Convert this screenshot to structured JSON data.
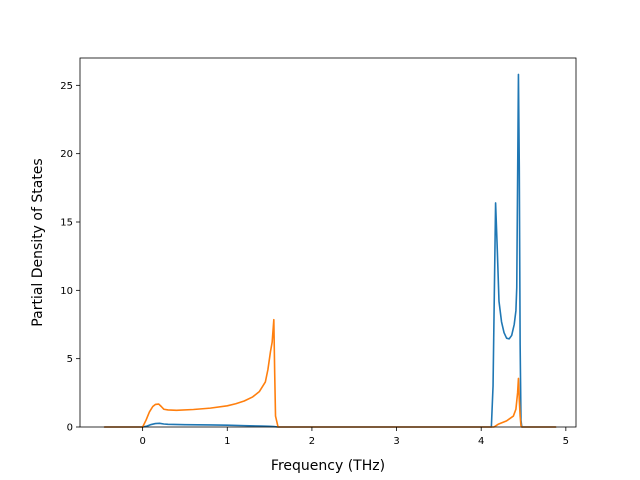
{
  "chart_data": {
    "type": "line",
    "title": "",
    "xlabel": "Frequency (THz)",
    "ylabel": "Partial Density of States",
    "xlim": [
      -0.74,
      5.12
    ],
    "ylim": [
      0,
      27.0
    ],
    "xticks": [
      0,
      1,
      2,
      3,
      4,
      5
    ],
    "yticks": [
      0,
      5,
      10,
      15,
      20,
      25
    ],
    "grid": false,
    "legend": "none",
    "series": [
      {
        "color": "#1f77b4",
        "points": [
          [
            -0.45,
            0.0
          ],
          [
            0.0,
            0.0
          ],
          [
            0.05,
            0.06
          ],
          [
            0.1,
            0.18
          ],
          [
            0.15,
            0.25
          ],
          [
            0.2,
            0.27
          ],
          [
            0.25,
            0.22
          ],
          [
            0.3,
            0.2
          ],
          [
            0.5,
            0.17
          ],
          [
            0.8,
            0.15
          ],
          [
            1.0,
            0.13
          ],
          [
            1.2,
            0.1
          ],
          [
            1.4,
            0.07
          ],
          [
            1.5,
            0.05
          ],
          [
            1.55,
            0.03
          ],
          [
            1.6,
            0.0
          ],
          [
            2.5,
            0.0
          ],
          [
            3.5,
            0.0
          ],
          [
            4.12,
            0.0
          ],
          [
            4.14,
            3.0
          ],
          [
            4.17,
            16.4
          ],
          [
            4.19,
            13.0
          ],
          [
            4.21,
            9.2
          ],
          [
            4.24,
            7.7
          ],
          [
            4.27,
            6.9
          ],
          [
            4.3,
            6.5
          ],
          [
            4.33,
            6.45
          ],
          [
            4.36,
            6.7
          ],
          [
            4.39,
            7.5
          ],
          [
            4.41,
            8.5
          ],
          [
            4.42,
            10.2
          ],
          [
            4.44,
            25.8
          ],
          [
            4.45,
            19.0
          ],
          [
            4.46,
            6.0
          ],
          [
            4.47,
            0.5
          ],
          [
            4.48,
            0.0
          ],
          [
            4.88,
            0.0
          ]
        ]
      },
      {
        "color": "#ff7f0e",
        "points": [
          [
            -0.45,
            0.0
          ],
          [
            0.0,
            0.0
          ],
          [
            0.04,
            0.5
          ],
          [
            0.08,
            1.1
          ],
          [
            0.12,
            1.5
          ],
          [
            0.15,
            1.65
          ],
          [
            0.19,
            1.68
          ],
          [
            0.22,
            1.5
          ],
          [
            0.25,
            1.3
          ],
          [
            0.3,
            1.25
          ],
          [
            0.4,
            1.22
          ],
          [
            0.6,
            1.28
          ],
          [
            0.8,
            1.38
          ],
          [
            1.0,
            1.55
          ],
          [
            1.1,
            1.7
          ],
          [
            1.2,
            1.9
          ],
          [
            1.3,
            2.2
          ],
          [
            1.38,
            2.6
          ],
          [
            1.45,
            3.3
          ],
          [
            1.48,
            4.2
          ],
          [
            1.51,
            5.5
          ],
          [
            1.53,
            6.2
          ],
          [
            1.55,
            7.85
          ],
          [
            1.56,
            4.0
          ],
          [
            1.57,
            0.8
          ],
          [
            1.6,
            0.0
          ],
          [
            2.5,
            0.0
          ],
          [
            3.5,
            0.0
          ],
          [
            4.15,
            0.0
          ],
          [
            4.2,
            0.2
          ],
          [
            4.3,
            0.45
          ],
          [
            4.38,
            0.8
          ],
          [
            4.41,
            1.3
          ],
          [
            4.43,
            2.5
          ],
          [
            4.44,
            3.55
          ],
          [
            4.45,
            2.0
          ],
          [
            4.46,
            0.8
          ],
          [
            4.47,
            0.1
          ],
          [
            4.48,
            0.0
          ],
          [
            4.88,
            0.0
          ]
        ]
      }
    ]
  }
}
